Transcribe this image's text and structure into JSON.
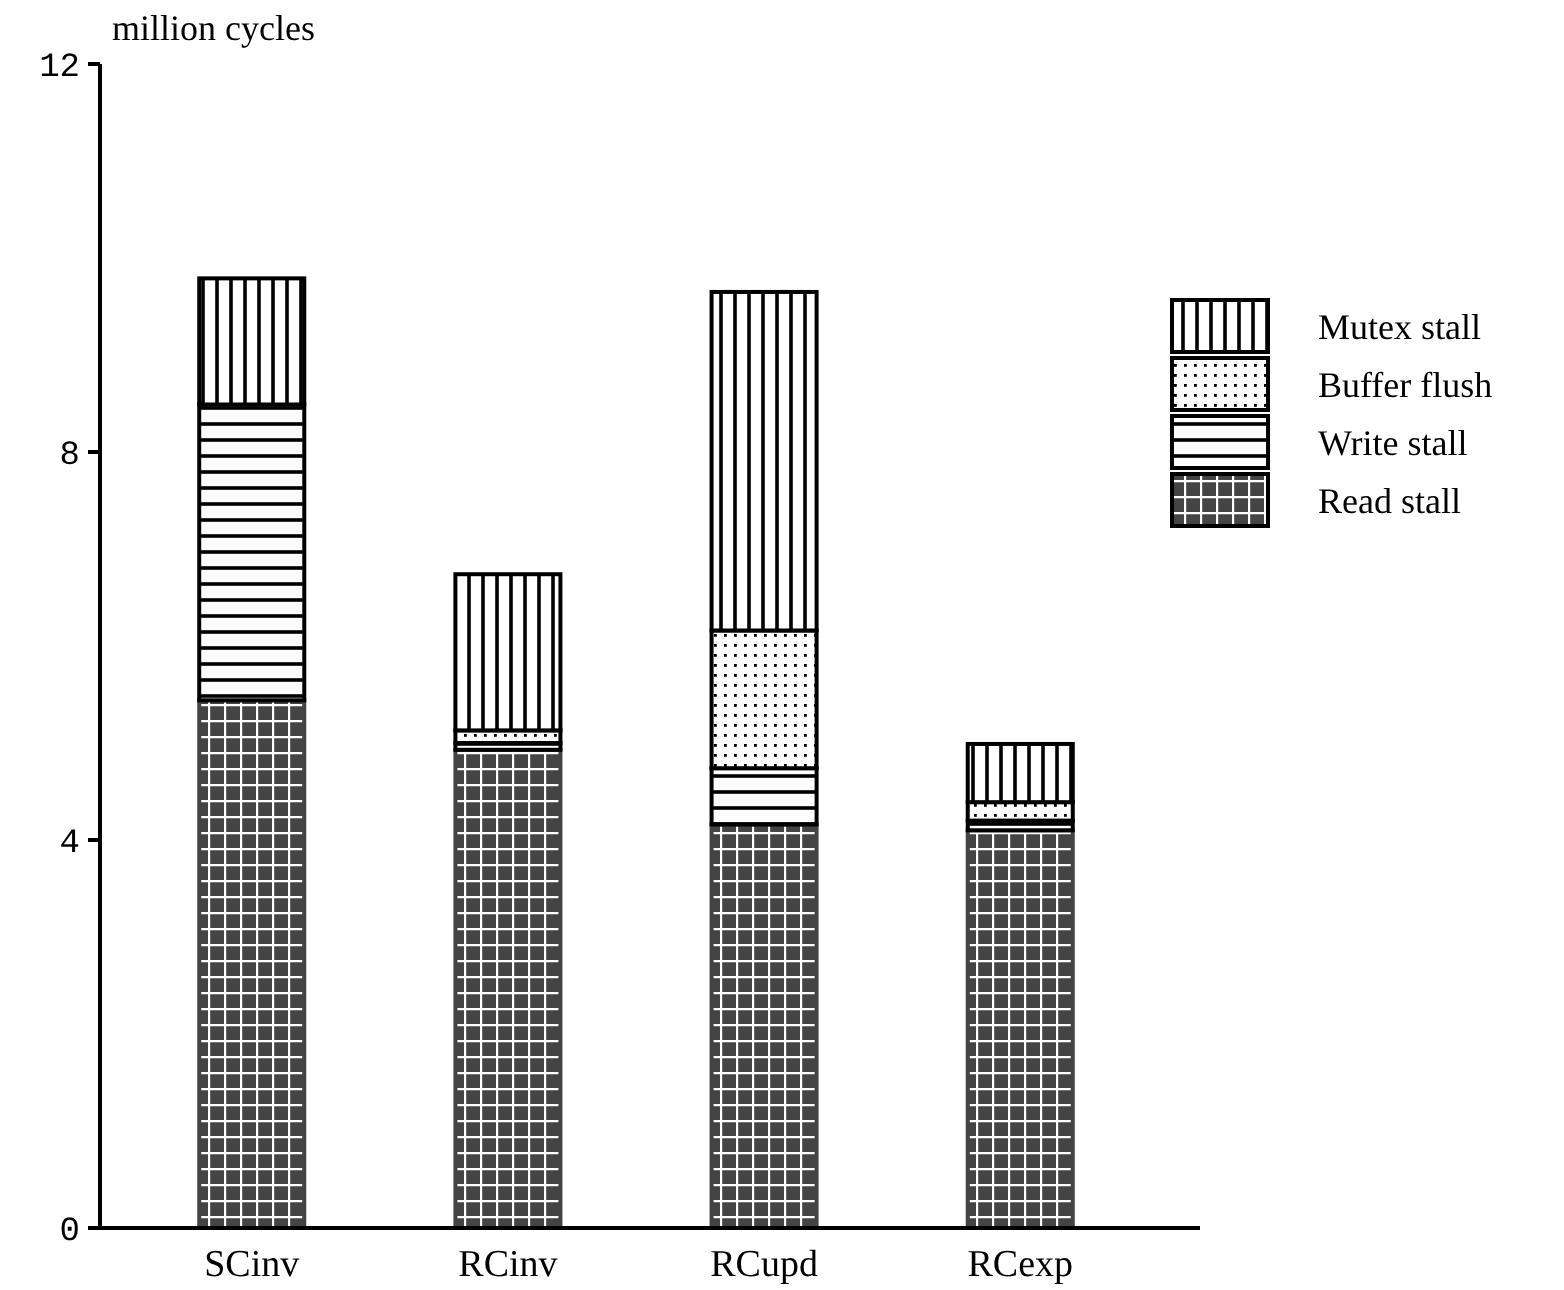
{
  "chart_data": {
    "type": "bar",
    "stacked": true,
    "ylabel": "million cycles",
    "categories": [
      "SCinv",
      "RCinv",
      "RCupd",
      "RCexp"
    ],
    "series": [
      {
        "name": "Read stall",
        "color": "#444444",
        "values": [
          5.44,
          4.93,
          4.16,
          4.1
        ]
      },
      {
        "name": "Write stall",
        "color": "#000000",
        "values": [
          3.05,
          0.07,
          0.58,
          0.1
        ]
      },
      {
        "name": "Buffer flush",
        "color": "#000000",
        "values": [
          0,
          0.13,
          1.42,
          0.19
        ]
      },
      {
        "name": "Mutex stall",
        "color": "#000000",
        "values": [
          1.3,
          1.61,
          3.49,
          0.6
        ]
      }
    ],
    "ylim": [
      0,
      12
    ],
    "yticks": [
      0,
      4,
      8,
      12
    ],
    "grid": false,
    "legend": "right"
  }
}
